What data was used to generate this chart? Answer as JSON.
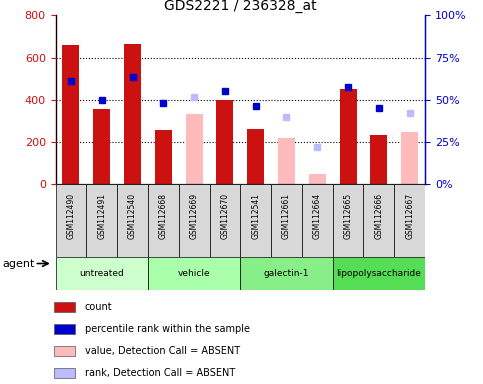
{
  "title": "GDS2221 / 236328_at",
  "samples": [
    "GSM112490",
    "GSM112491",
    "GSM112540",
    "GSM112668",
    "GSM112669",
    "GSM112670",
    "GSM112541",
    "GSM112661",
    "GSM112664",
    "GSM112665",
    "GSM112666",
    "GSM112667"
  ],
  "groups": [
    {
      "label": "untreated",
      "indices": [
        0,
        1,
        2
      ],
      "color": "#ccffcc"
    },
    {
      "label": "vehicle",
      "indices": [
        3,
        4,
        5
      ],
      "color": "#aaffaa"
    },
    {
      "label": "galectin-1",
      "indices": [
        6,
        7,
        8
      ],
      "color": "#88ee88"
    },
    {
      "label": "lipopolysaccharide",
      "indices": [
        9,
        10,
        11
      ],
      "color": "#55dd55"
    }
  ],
  "count": [
    660,
    355,
    665,
    258,
    null,
    400,
    263,
    null,
    null,
    450,
    235,
    null
  ],
  "percentile": [
    490,
    400,
    510,
    385,
    null,
    440,
    370,
    null,
    null,
    460,
    362,
    null
  ],
  "value_absent": [
    null,
    null,
    null,
    null,
    335,
    null,
    null,
    218,
    50,
    null,
    null,
    250
  ],
  "rank_absent": [
    null,
    null,
    null,
    null,
    415,
    null,
    null,
    320,
    175,
    null,
    null,
    340
  ],
  "ylim_left": [
    0,
    800
  ],
  "ylim_right": [
    0,
    100
  ],
  "yticks_left": [
    0,
    200,
    400,
    600,
    800
  ],
  "yticks_right": [
    0,
    25,
    50,
    75,
    100
  ],
  "ytick_labels_left": [
    "0",
    "200",
    "400",
    "600",
    "800"
  ],
  "ytick_labels_right": [
    "0%",
    "25%",
    "50%",
    "75%",
    "100%"
  ],
  "count_color": "#cc1111",
  "percentile_color": "#0000cc",
  "value_absent_color": "#ffbbbb",
  "rank_absent_color": "#bbbbff",
  "legend_items": [
    {
      "label": "count",
      "color": "#cc1111"
    },
    {
      "label": "percentile rank within the sample",
      "color": "#0000cc"
    },
    {
      "label": "value, Detection Call = ABSENT",
      "color": "#ffbbbb"
    },
    {
      "label": "rank, Detection Call = ABSENT",
      "color": "#bbbbff"
    }
  ]
}
